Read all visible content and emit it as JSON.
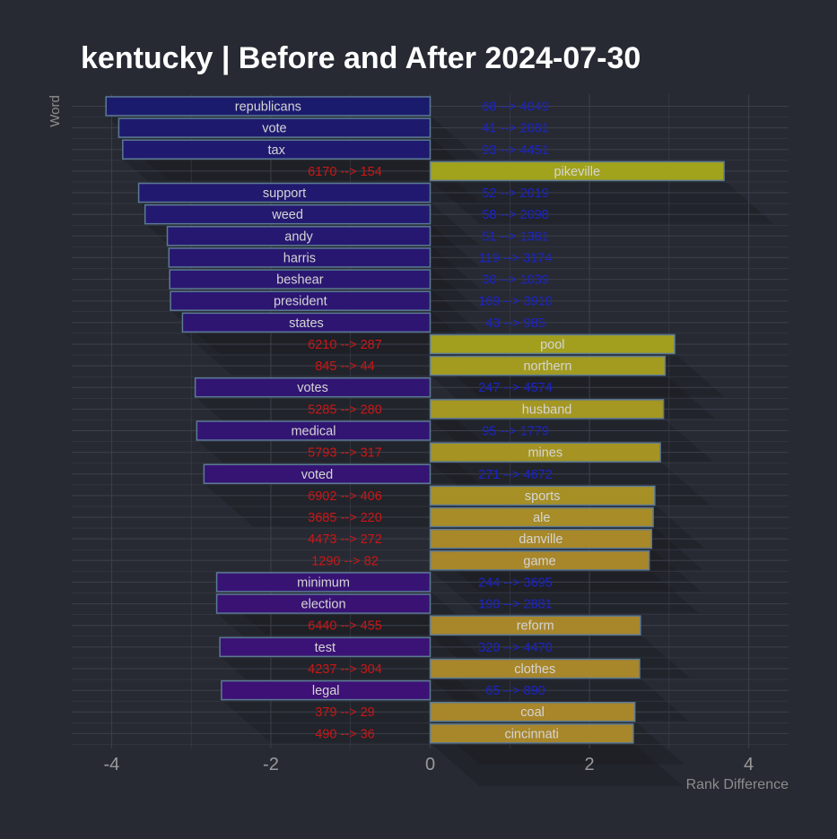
{
  "chart_data": {
    "type": "bar",
    "orientation": "horizontal",
    "title": "kentucky | Before and After 2024-07-30",
    "xlabel": "Rank Difference",
    "ylabel": "Word",
    "xlim": [
      -4.5,
      4.5
    ],
    "xticks": [
      -4,
      -2,
      0,
      2,
      4
    ],
    "grid": true,
    "categories": [
      "republicans",
      "vote",
      "tax",
      "pikeville",
      "support",
      "weed",
      "andy",
      "harris",
      "beshear",
      "president",
      "states",
      "pool",
      "northern",
      "votes",
      "husband",
      "medical",
      "mines",
      "voted",
      "sports",
      "ale",
      "danville",
      "game",
      "minimum",
      "election",
      "reform",
      "test",
      "clothes",
      "legal",
      "coal",
      "cincinnati"
    ],
    "values": [
      -4.07,
      -3.91,
      -3.86,
      3.69,
      -3.66,
      -3.58,
      -3.3,
      -3.28,
      -3.27,
      -3.26,
      -3.11,
      3.07,
      2.95,
      -2.95,
      2.93,
      -2.93,
      2.89,
      -2.84,
      2.82,
      2.8,
      2.78,
      2.75,
      -2.68,
      -2.68,
      2.64,
      -2.64,
      2.63,
      -2.62,
      2.57,
      2.55
    ],
    "annotations": [
      "68 --> 4049",
      "41 --> 2081",
      "93 --> 4451",
      "6170 --> 154",
      "52 --> 2019",
      "58 --> 2098",
      "51 --> 1381",
      "119 --> 3174",
      "30 --> 1039",
      "169 --> 3910",
      "43 --> 985",
      "6210 --> 287",
      "845 --> 44",
      "247 --> 4574",
      "5285 --> 280",
      "95 --> 1779",
      "5793 --> 317",
      "271 --> 4672",
      "6902 --> 406",
      "3685 --> 220",
      "4473 --> 272",
      "1290 --> 82",
      "244 --> 3695",
      "190 --> 2881",
      "6440 --> 455",
      "320 --> 4470",
      "4237 --> 304",
      "65 --> 890",
      "379 --> 29",
      "490 --> 36"
    ],
    "colors": {
      "background": "#272a33",
      "grid": "#3c404b",
      "negative_start": "#1b1b6e",
      "negative_end": "#3d1175",
      "positive_top": "#a1a31c",
      "positive_bottom": "#a8862a",
      "bar_edge": "#5c7a96",
      "bar_label": "#d5d5d5",
      "annotation_negative_bar": "#1c23c8",
      "annotation_positive_bar": "#cc1616",
      "tick_label": "#9a9a9a"
    }
  }
}
